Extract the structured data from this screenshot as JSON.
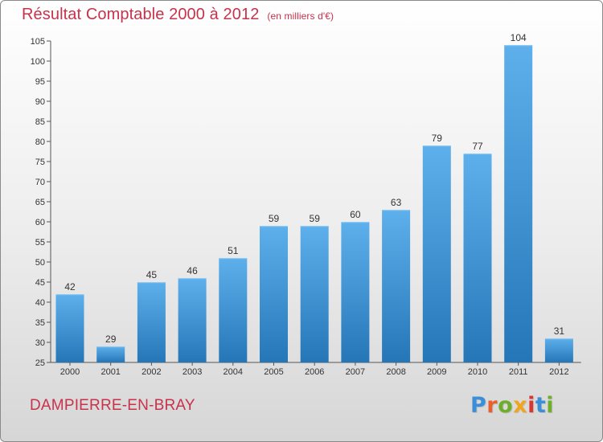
{
  "header": {
    "title": "Résultat Comptable 2000 à 2012",
    "subtitle": "(en milliers d'€)"
  },
  "footer": {
    "commune": "DAMPIERRE-EN-BRAY",
    "logo_text": "Proxiti",
    "logo_colors": [
      "#3a8fd8",
      "#e8612c",
      "#6dae2d",
      "#f0a51c",
      "#d9372f",
      "#3a8fd8",
      "#6dae2d"
    ]
  },
  "colors": {
    "bar_top": "#5eb0ec",
    "bar_bottom": "#2576b7",
    "axis": "#555555",
    "title": "#c8324b"
  },
  "chart_data": {
    "type": "bar",
    "title": "Résultat Comptable 2000 à 2012",
    "subtitle": "(en milliers d'€)",
    "categories": [
      "2000",
      "2001",
      "2002",
      "2003",
      "2004",
      "2005",
      "2006",
      "2007",
      "2008",
      "2009",
      "2010",
      "2011",
      "2012"
    ],
    "values": [
      42,
      29,
      45,
      46,
      51,
      59,
      59,
      60,
      63,
      79,
      77,
      104,
      31
    ],
    "xlabel": "",
    "ylabel": "",
    "ylim": [
      25,
      105
    ],
    "yticks": [
      25,
      30,
      35,
      40,
      45,
      50,
      55,
      60,
      65,
      70,
      75,
      80,
      85,
      90,
      95,
      100,
      105
    ],
    "grid": false,
    "legend": "none"
  }
}
